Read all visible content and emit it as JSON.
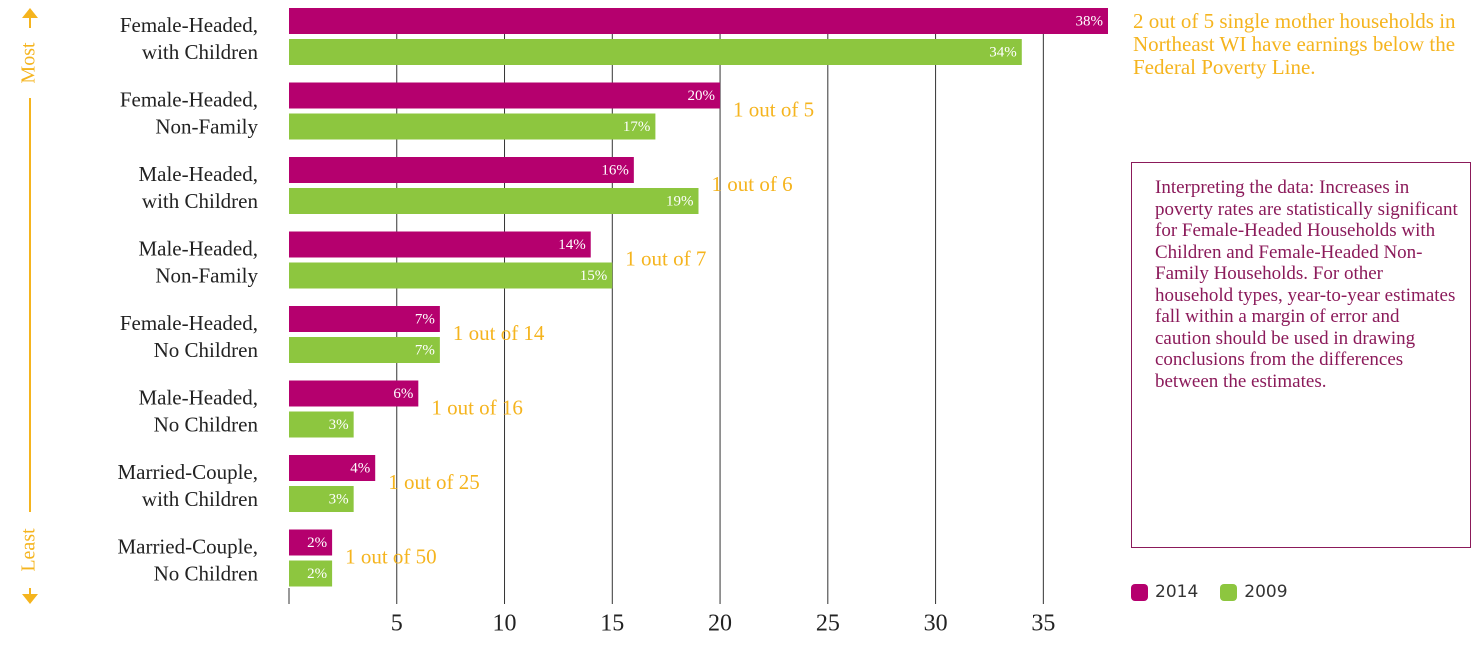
{
  "chart_data": {
    "type": "hbar",
    "categories": [
      [
        "Female-Headed,",
        "with Children"
      ],
      [
        "Female-Headed,",
        "Non-Family"
      ],
      [
        "Male-Headed,",
        "with Children"
      ],
      [
        "Male-Headed,",
        "Non-Family"
      ],
      [
        "Female-Headed,",
        "No Children"
      ],
      [
        "Male-Headed,",
        "No Children"
      ],
      [
        "Married-Couple,",
        "with Children"
      ],
      [
        "Married-Couple,",
        "No Children"
      ]
    ],
    "series": [
      {
        "name": "2014",
        "color": "#b5006e",
        "values": [
          38,
          20,
          16,
          14,
          7,
          6,
          4,
          2
        ],
        "value_labels": [
          "38%",
          "20%",
          "16%",
          "14%",
          "7%",
          "6%",
          "4%",
          "2%"
        ]
      },
      {
        "name": "2009",
        "color": "#8dc63f",
        "values": [
          34,
          17,
          19,
          15,
          7,
          3,
          3,
          2
        ],
        "value_labels": [
          "34%",
          "17%",
          "19%",
          "15%",
          "7%",
          "3%",
          "3%",
          "2%"
        ]
      }
    ],
    "ratio_labels": [
      null,
      "1 out of 5",
      "1 out of 6",
      "1 out of 7",
      "1 out of 14",
      "1 out of 16",
      "1 out of 25",
      "1 out of 50"
    ],
    "xlim": [
      0,
      38
    ],
    "xticks": [
      5,
      10,
      15,
      20,
      25,
      30,
      35
    ],
    "grid": true,
    "axis_top_label": "Most",
    "axis_bottom_label": "Least",
    "callout": "2 out of 5 single mother households in Northeast WI have earnings below the Federal Poverty Line.",
    "note": "Interpreting the data: Increases in poverty rates are statistically significant for Female-Headed Households with Children and Female-Headed Non-Family Households. For other household types, year-to-year estimates fall within a margin of error and caution should be used in drawing conclusions from the differences between the estimates."
  }
}
